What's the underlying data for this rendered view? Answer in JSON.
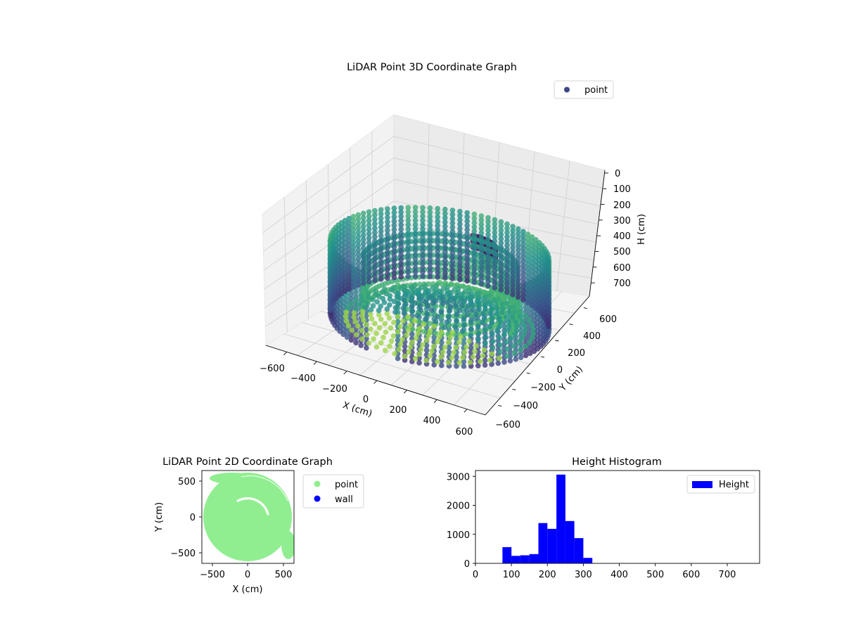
{
  "colors": {
    "viridis": [
      "#440154",
      "#3b528b",
      "#21918c",
      "#5ec962",
      "#fde725"
    ],
    "legend_point_3d": "#3f4788",
    "point_2d": "#90ee90",
    "wall_2d": "#0000ff",
    "histogram": "#0000ff",
    "pane": "#f2f2f2",
    "grid": "#cccccc"
  },
  "chart_data": [
    {
      "type": "scatter",
      "projection": "3d",
      "title": "LiDAR Point 3D Coordinate Graph",
      "xlabel": "X (cm)",
      "ylabel": "Y (cm)",
      "zlabel": "H (cm)",
      "x_ticks": [
        "−600",
        "−400",
        "−200",
        "0",
        "200",
        "400",
        "600"
      ],
      "y_ticks": [
        "600",
        "400",
        "200",
        "0",
        "−200",
        "−400",
        "−600"
      ],
      "z_ticks": [
        "0",
        "100",
        "200",
        "300",
        "400",
        "500",
        "600",
        "700"
      ],
      "xlim": [
        -650,
        650
      ],
      "ylim": [
        -650,
        650
      ],
      "zlim": [
        0,
        760
      ],
      "z_inverted": true,
      "legend": [
        "point"
      ],
      "legend_placement": "top-right",
      "grid": true,
      "colormap": "viridis",
      "description_of_shape": "circular room walls of radius ~560 cm drawn as vertical columns of points from ~150 to ~650 cm height, with an inner arc and floor points"
    },
    {
      "type": "scatter",
      "title": "LiDAR Point 2D Coordinate Graph",
      "xlabel": "X (cm)",
      "ylabel": "Y (cm)",
      "x_ticks": [
        "−500",
        "0",
        "500"
      ],
      "y_ticks": [
        "500",
        "0",
        "−500"
      ],
      "xlim": [
        -630,
        630
      ],
      "ylim": [
        -630,
        630
      ],
      "legend": [
        "point",
        "wall"
      ],
      "legend_placement": "outside right",
      "series": [
        {
          "name": "point",
          "color": "#90ee90",
          "shape": "disc of radius ~560 cm filled with points"
        },
        {
          "name": "wall",
          "color": "#0000ff",
          "shape": "no visible wall points"
        }
      ]
    },
    {
      "type": "bar",
      "subtype": "histogram",
      "title": "Height Histogram",
      "legend": [
        "Height"
      ],
      "legend_placement": "top-right",
      "xlim": [
        0,
        790
      ],
      "ylim": [
        0,
        3200
      ],
      "x_ticks": [
        "0",
        "100",
        "200",
        "300",
        "400",
        "500",
        "600",
        "700"
      ],
      "y_ticks": [
        "0",
        "1000",
        "2000",
        "3000"
      ],
      "bin_width": 25,
      "bins": [
        {
          "x0": 75,
          "x1": 100,
          "count": 560
        },
        {
          "x0": 100,
          "x1": 125,
          "count": 260
        },
        {
          "x0": 125,
          "x1": 150,
          "count": 280
        },
        {
          "x0": 150,
          "x1": 175,
          "count": 320
        },
        {
          "x0": 175,
          "x1": 200,
          "count": 1390
        },
        {
          "x0": 200,
          "x1": 225,
          "count": 1190
        },
        {
          "x0": 225,
          "x1": 250,
          "count": 3060
        },
        {
          "x0": 250,
          "x1": 275,
          "count": 1460
        },
        {
          "x0": 275,
          "x1": 300,
          "count": 870
        },
        {
          "x0": 300,
          "x1": 325,
          "count": 190
        }
      ]
    }
  ]
}
